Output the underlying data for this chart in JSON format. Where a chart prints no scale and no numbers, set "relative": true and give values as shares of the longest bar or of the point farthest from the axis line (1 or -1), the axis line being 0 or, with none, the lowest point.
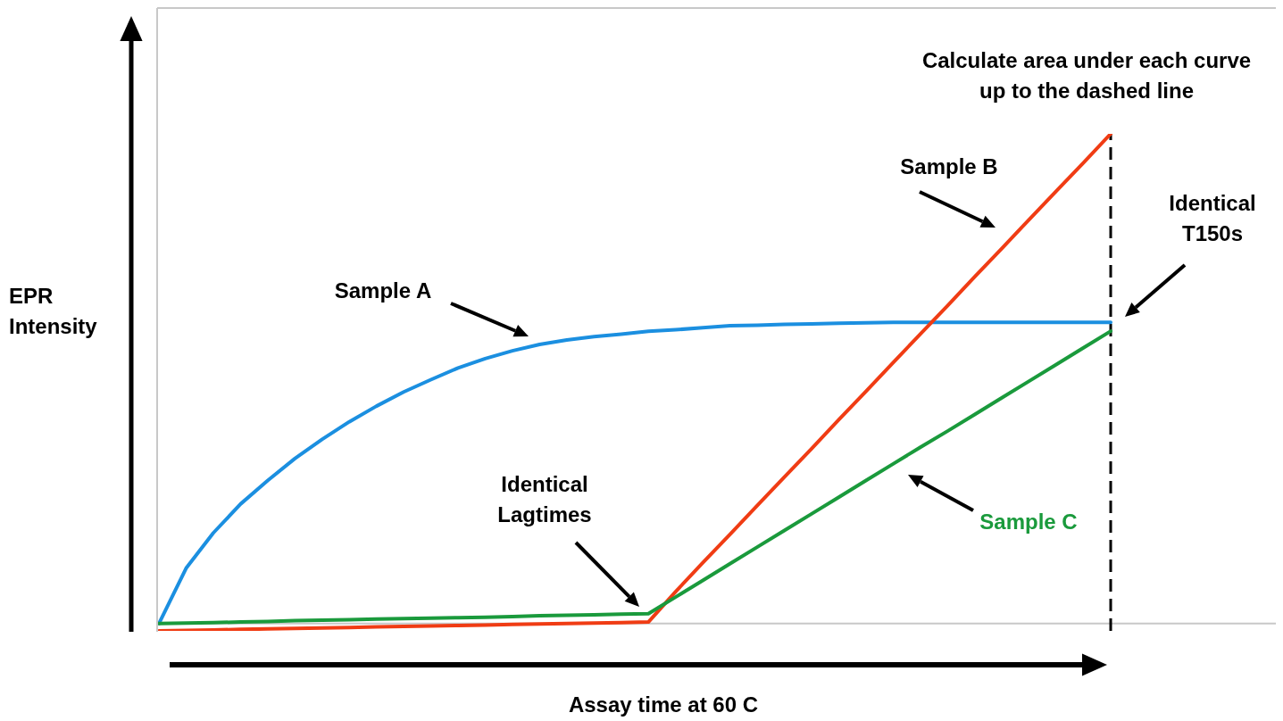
{
  "chart_data": {
    "type": "line",
    "relative": true,
    "xlabel": "Assay time at 60 C",
    "ylabel": "EPR Intensity",
    "marker": "none",
    "line_style": "solid",
    "categories": [
      null,
      null,
      null,
      null,
      null,
      null,
      null,
      null,
      null,
      null,
      null,
      null,
      null,
      null,
      null,
      null,
      null,
      null,
      null,
      null,
      null,
      null,
      null,
      null,
      null,
      null,
      null,
      null,
      null,
      null,
      null,
      null,
      null,
      null,
      null,
      null
    ],
    "series": [
      {
        "name": "Sample A",
        "color": "#1b8fe0",
        "values": [
          0,
          0.113,
          0.185,
          0.244,
          0.292,
          0.337,
          0.376,
          0.412,
          0.444,
          0.473,
          0.498,
          0.522,
          0.541,
          0.557,
          0.57,
          0.579,
          0.586,
          0.591,
          0.597,
          0.6,
          0.604,
          0.608,
          0.609,
          0.611,
          0.612,
          0.613,
          0.614,
          0.615,
          0.615,
          0.615,
          0.615,
          0.615,
          0.615,
          0.615,
          0.615,
          0.615
        ]
      },
      {
        "name": "Sample B",
        "color": "#f03c14",
        "values": [
          -0.015,
          -0.014,
          -0.013,
          -0.012,
          -0.011,
          -0.01,
          -0.009,
          -0.008,
          -0.007,
          -0.006,
          -0.005,
          -0.004,
          -0.003,
          -0.002,
          -0.001,
          0,
          0.001,
          0.002,
          0.003,
          0.065,
          0.124,
          0.182,
          0.241,
          0.299,
          0.357,
          0.416,
          0.474,
          0.533,
          0.591,
          0.649,
          0.708,
          0.766,
          0.825,
          0.883,
          0.941,
          1.0
        ]
      },
      {
        "name": "Sample C",
        "color": "#1a9a3c",
        "values": [
          0,
          0.001,
          0.002,
          0.003,
          0.004,
          0.006,
          0.007,
          0.008,
          0.009,
          0.01,
          0.011,
          0.012,
          0.013,
          0.014,
          0.016,
          0.017,
          0.018,
          0.019,
          0.02,
          0.054,
          0.088,
          0.122,
          0.156,
          0.19,
          0.224,
          0.258,
          0.292,
          0.326,
          0.36,
          0.393,
          0.427,
          0.461,
          0.495,
          0.529,
          0.563,
          0.597
        ]
      }
    ],
    "annotations": [
      "Calculate area under each curve up to the dashed line",
      "Identical Lagtimes",
      "Identical T150s"
    ]
  }
}
